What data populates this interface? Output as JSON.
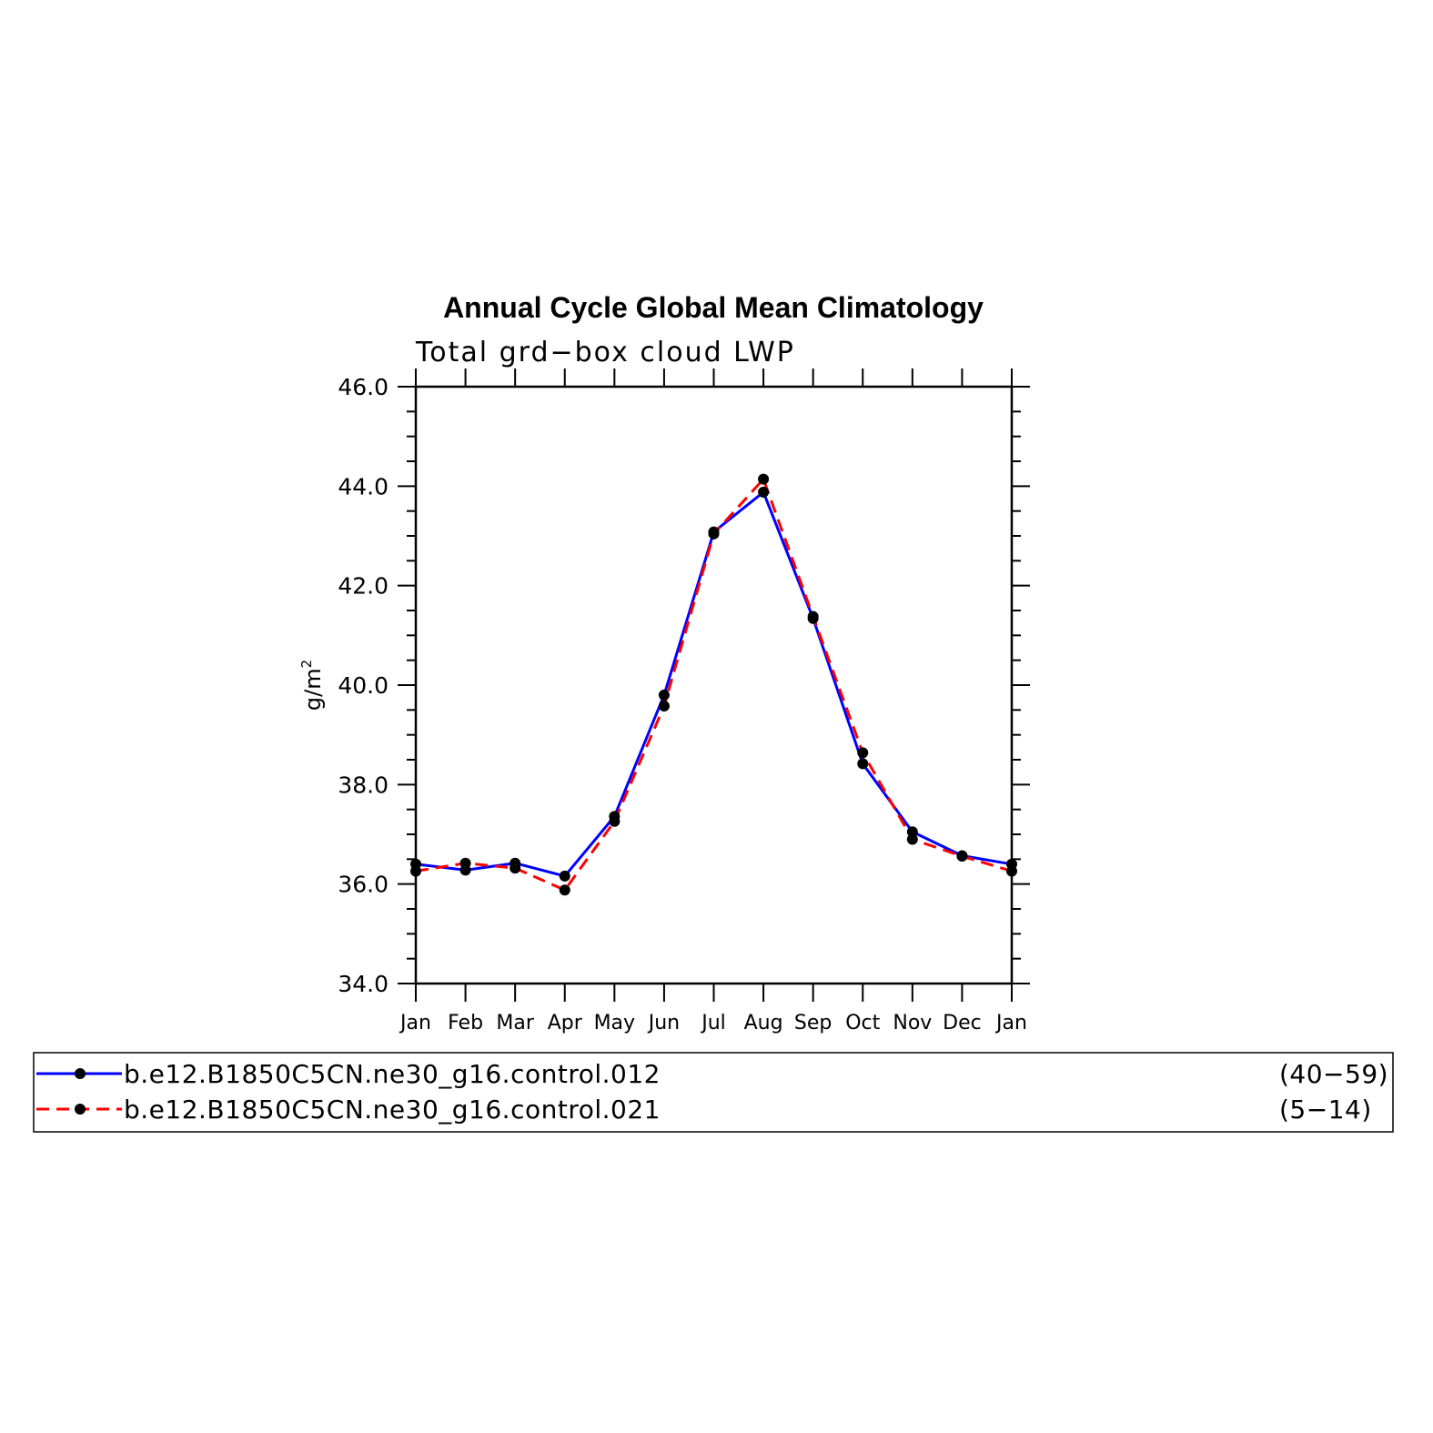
{
  "chart_data": {
    "type": "line",
    "title": "Annual Cycle Global Mean Climatology",
    "subtitle": "Total grd−box cloud LWP",
    "xlabel": "",
    "ylabel": "g/m",
    "ylabel_sup": "2",
    "categories": [
      "Jan",
      "Feb",
      "Mar",
      "Apr",
      "May",
      "Jun",
      "Jul",
      "Aug",
      "Sep",
      "Oct",
      "Nov",
      "Dec",
      "Jan"
    ],
    "ylim": [
      34.0,
      46.0
    ],
    "yticks": [
      "34.0",
      "36.0",
      "38.0",
      "40.0",
      "42.0",
      "44.0",
      "46.0"
    ],
    "grid": false,
    "legend_position": "bottom",
    "series": [
      {
        "name": "b.e12.B1850C5CN.ne30_g16.control.012",
        "years": "(40−59)",
        "color": "#0000ff",
        "dash": "solid",
        "values": [
          36.4,
          36.28,
          36.42,
          36.16,
          37.36,
          39.8,
          43.08,
          43.88,
          41.34,
          38.42,
          37.05,
          36.57,
          36.4
        ]
      },
      {
        "name": "b.e12.B1850C5CN.ne30_g16.control.021",
        "years": "(5−14)",
        "color": "#ff0000",
        "dash": "dashed",
        "values": [
          36.26,
          36.42,
          36.32,
          35.88,
          37.26,
          39.58,
          43.04,
          44.14,
          41.38,
          38.64,
          36.9,
          36.56,
          36.26
        ]
      }
    ]
  }
}
